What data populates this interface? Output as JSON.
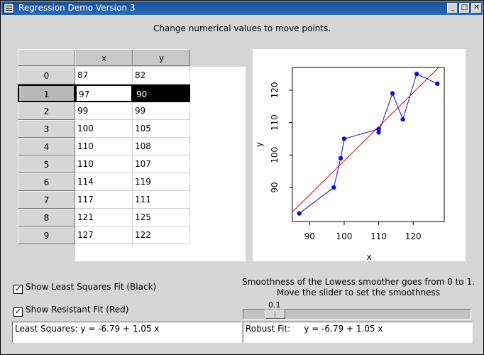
{
  "window": {
    "title": "Regression Demo Version 3",
    "btn_min": "_",
    "btn_max": "□",
    "btn_close": "✕"
  },
  "instruction": "Change numerical values to move points.",
  "table": {
    "columns": [
      "x",
      "y"
    ],
    "rows": [
      {
        "label": "0",
        "x": "87",
        "y": "82"
      },
      {
        "label": "1",
        "x": "97",
        "y": "90"
      },
      {
        "label": "2",
        "x": "99",
        "y": "99"
      },
      {
        "label": "3",
        "x": "100",
        "y": "105"
      },
      {
        "label": "4",
        "x": "110",
        "y": "108"
      },
      {
        "label": "5",
        "x": "110",
        "y": "107"
      },
      {
        "label": "6",
        "x": "114",
        "y": "119"
      },
      {
        "label": "7",
        "x": "117",
        "y": "111"
      },
      {
        "label": "8",
        "x": "121",
        "y": "125"
      },
      {
        "label": "9",
        "x": "127",
        "y": "122"
      }
    ],
    "selected_row": 1
  },
  "plot": {
    "xlabel": "x",
    "ylabel": "y",
    "xticks": [
      90,
      100,
      110,
      120
    ],
    "yticks": [
      90,
      100,
      110,
      120
    ],
    "xlim": [
      85,
      129
    ],
    "ylim": [
      79.5,
      127
    ],
    "points": [
      [
        87,
        82
      ],
      [
        97,
        90
      ],
      [
        99,
        99
      ],
      [
        100,
        105
      ],
      [
        110,
        108
      ],
      [
        110,
        107
      ],
      [
        114,
        119
      ],
      [
        117,
        111
      ],
      [
        121,
        125
      ],
      [
        127,
        122
      ]
    ],
    "fit_intercept": -6.79,
    "fit_slope": 1.05,
    "point_color": "#1010d0",
    "fit_color": "#e00000"
  },
  "controls": {
    "least_squares_label": "Show Least Squares Fit (Black)",
    "least_squares_checked": "✓",
    "resistant_label": "Show Resistant Fit (Red)",
    "resistant_checked": "✓",
    "smooth_text_1": "Smoothness of the Lowess smoother goes from 0 to 1.",
    "smooth_text_2": "Move the slider to set the smoothness",
    "smooth_value": "0.1",
    "least_squares_output": "Least Squares: y = -6.79 + 1.05 x",
    "robust_output": "Robust Fit:     y = -6.79 + 1.05 x"
  }
}
